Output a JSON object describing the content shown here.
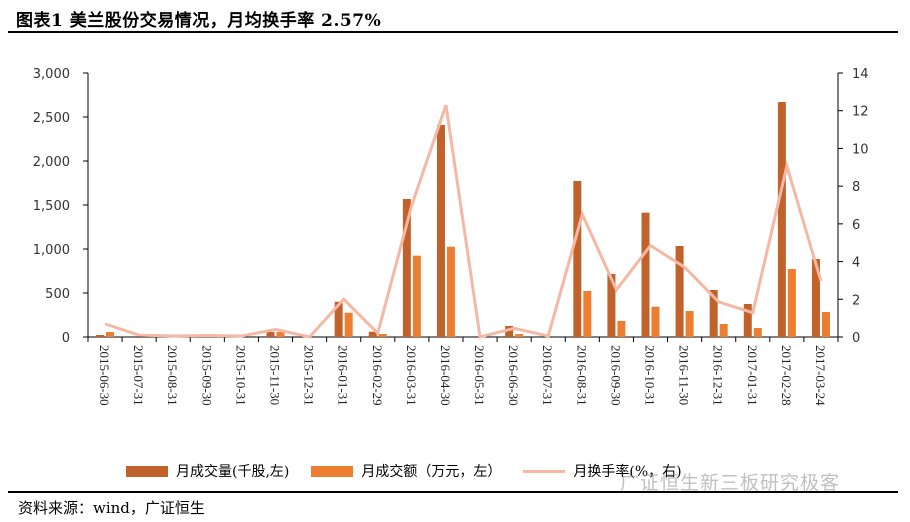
{
  "header": {
    "title": "图表1 美兰股份交易情况，月均换手率 2.57%"
  },
  "footer": {
    "source": "资料来源：wind，广证恒生"
  },
  "watermark": "广证恒生新三板研究极客",
  "colors": {
    "volume": "#C0622A",
    "amount": "#ED7D31",
    "turnover": "#F4B8A4",
    "axis": "#000000"
  },
  "legend": [
    {
      "label": "月成交量(千股,左)",
      "type": "bar",
      "color": "#C0622A"
    },
    {
      "label": "月成交额（万元，左）",
      "type": "bar",
      "color": "#ED7D31"
    },
    {
      "label": "月换手率(%，右)",
      "type": "line",
      "color": "#F4B8A4"
    }
  ],
  "chart_data": {
    "type": "bar",
    "title": "图表1 美兰股份交易情况，月均换手率 2.57%",
    "xlabel": "",
    "ylabel": "",
    "ylim": [
      0,
      3000
    ],
    "y2lim": [
      0,
      14
    ],
    "y_ticks": [
      "0",
      "500",
      "1,000",
      "1,500",
      "2,000",
      "2,500",
      "3,000"
    ],
    "y2_ticks": [
      "0",
      "2",
      "4",
      "6",
      "8",
      "10",
      "12",
      "14"
    ],
    "grid": false,
    "legend_position": "bottom",
    "categories": [
      "2015-06-30",
      "2015-07-31",
      "2015-08-31",
      "2015-09-30",
      "2015-10-31",
      "2015-11-30",
      "2015-12-31",
      "2016-01-31",
      "2016-02-29",
      "2016-03-31",
      "2016-04-30",
      "2016-05-31",
      "2016-06-30",
      "2016-07-31",
      "2016-08-31",
      "2016-09-30",
      "2016-10-31",
      "2016-11-30",
      "2016-12-31",
      "2017-01-31",
      "2017-02-28",
      "2017-03-24"
    ],
    "series": [
      {
        "name": "月成交量(千股,左)",
        "type": "bar",
        "axis": "left",
        "values": [
          23,
          0,
          0,
          0,
          0,
          57,
          0,
          401,
          60,
          1568,
          2409,
          0,
          125,
          0,
          1773,
          716,
          1413,
          1034,
          534,
          375,
          2670,
          886
        ]
      },
      {
        "name": "月成交额（万元，左）",
        "type": "bar",
        "axis": "left",
        "values": [
          57,
          0,
          0,
          0,
          0,
          57,
          0,
          276,
          34,
          924,
          1026,
          0,
          34,
          0,
          523,
          182,
          344,
          295,
          148,
          102,
          773,
          284
        ]
      },
      {
        "name": "月换手率(%，右)",
        "type": "line",
        "axis": "right",
        "values": [
          0.69,
          0.1,
          0.05,
          0.08,
          0.05,
          0.4,
          0.0,
          2.0,
          0.2,
          7.0,
          12.3,
          0.0,
          0.46,
          0.05,
          6.5,
          2.5,
          4.85,
          3.7,
          1.86,
          1.29,
          9.07,
          2.97
        ]
      }
    ]
  }
}
